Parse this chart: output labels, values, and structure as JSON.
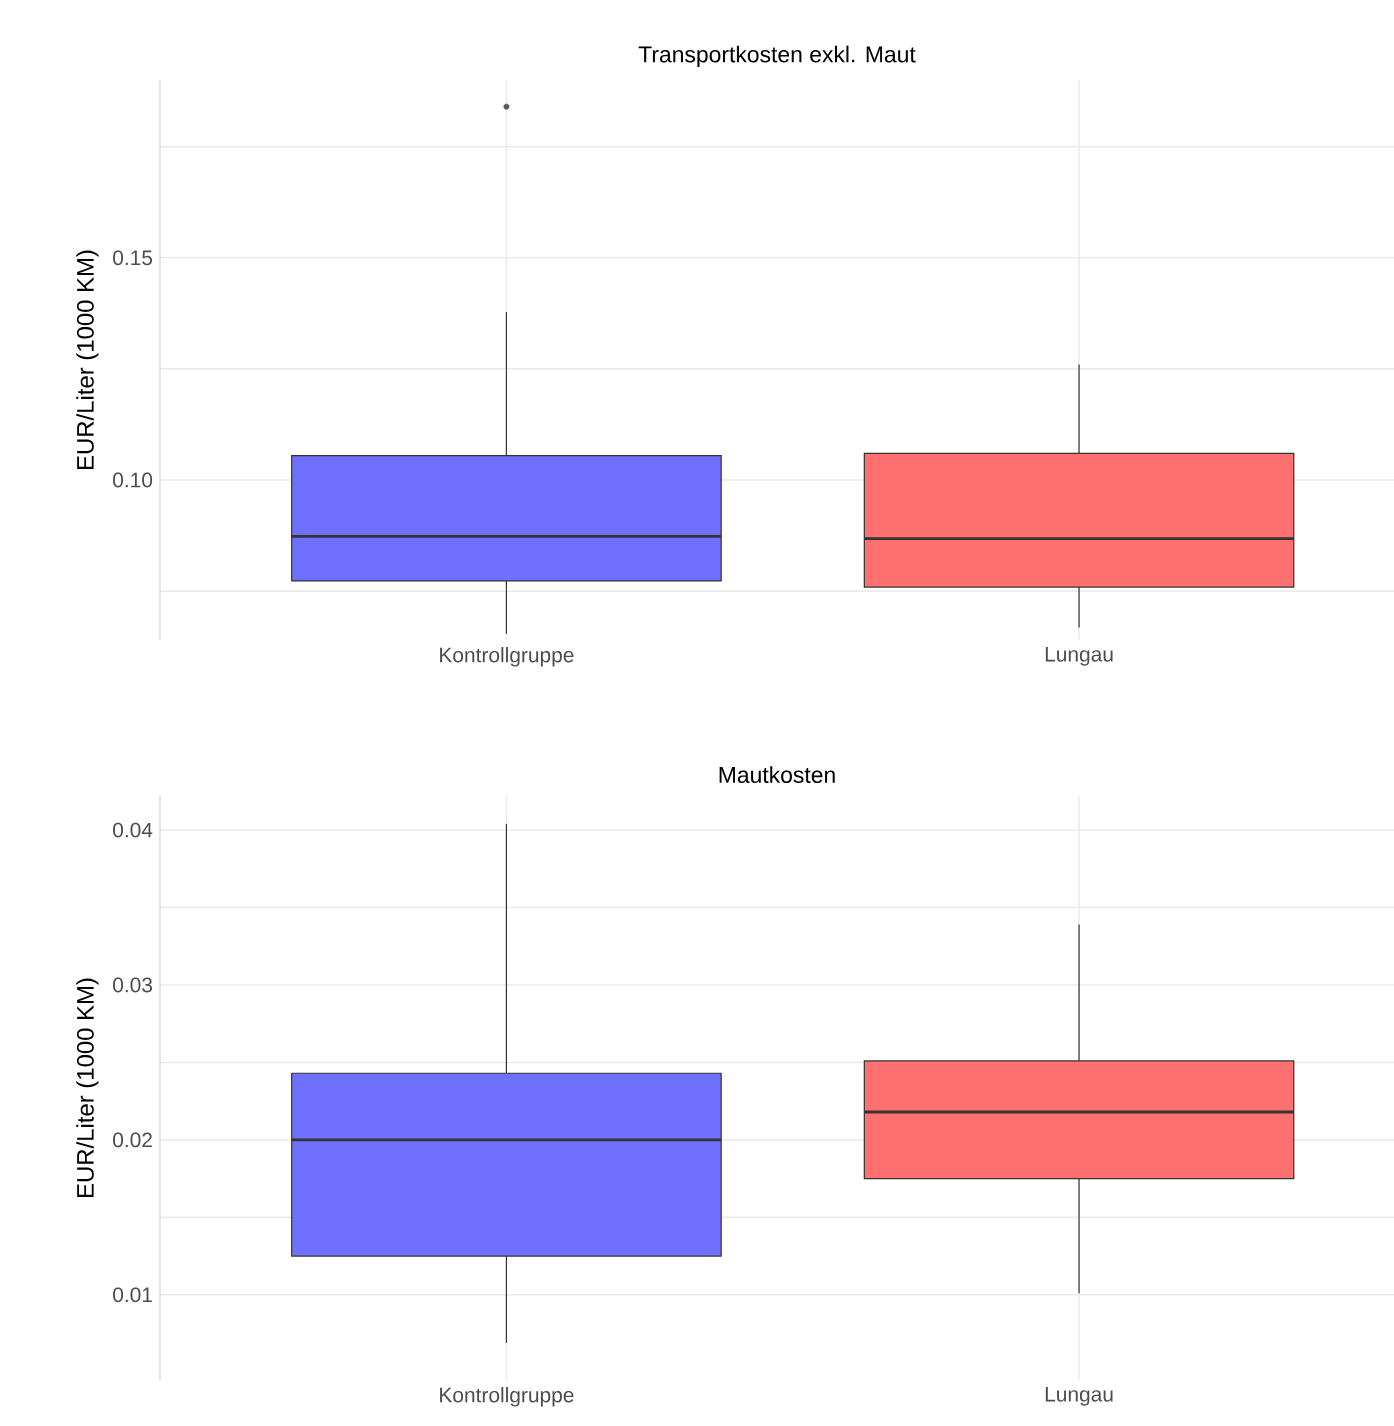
{
  "chart_data": [
    {
      "type": "box",
      "title": "Transportkosten exkl. Maut",
      "ylabel": "EUR/Liter (1000 KM)",
      "categories": [
        "Kontrollgruppe",
        "Lungau"
      ],
      "boxes": [
        {
          "low": 0.0654,
          "q1": 0.0773,
          "median": 0.0873,
          "q3": 0.1055,
          "high": 0.1378,
          "outliers": [
            0.184
          ]
        },
        {
          "low": 0.0668,
          "q1": 0.0759,
          "median": 0.0868,
          "q3": 0.106,
          "high": 0.126
        }
      ],
      "colors": [
        "#7070ff",
        "#ff7070"
      ],
      "ylim": [
        0.064,
        0.19
      ],
      "yticks": [
        {
          "value": 0.075,
          "label": null
        },
        {
          "value": 0.1,
          "label": "0.10"
        },
        {
          "value": 0.125,
          "label": null
        },
        0.15,
        {
          "value": 0.175,
          "label": null
        }
      ],
      "grid": true
    },
    {
      "type": "box",
      "title": "Mautkosten",
      "ylabel": "EUR/Liter (1000 KM)",
      "categories": [
        "Kontrollgruppe",
        "Lungau"
      ],
      "boxes": [
        {
          "low": 0.0069,
          "q1": 0.0125,
          "median": 0.02,
          "q3": 0.0243,
          "high": 0.0404
        },
        {
          "low": 0.0101,
          "q1": 0.0175,
          "median": 0.0218,
          "q3": 0.0251,
          "high": 0.0339
        }
      ],
      "colors": [
        "#7070ff",
        "#ff7070"
      ],
      "ylim": [
        0.0045,
        0.0422
      ],
      "yticks": [
        0.01,
        {
          "value": 0.015,
          "label": null
        },
        0.02,
        {
          "value": 0.025,
          "label": null
        },
        0.03,
        {
          "value": 0.035,
          "label": null
        },
        0.04
      ],
      "grid": true
    }
  ]
}
